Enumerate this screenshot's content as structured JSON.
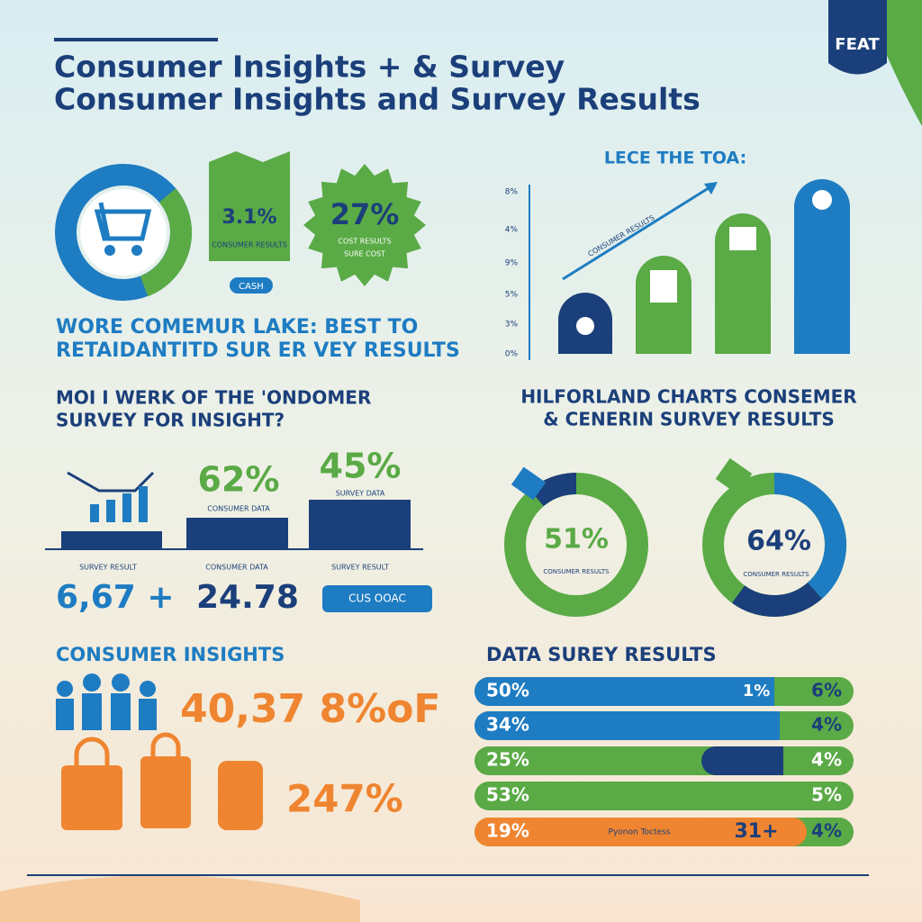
{
  "badge": "FEAT",
  "header": {
    "title_1": "Consumer Insights + & Survey",
    "title_2": "Consumer Insights and Survey Results"
  },
  "top_left": {
    "box_value": "3.1%",
    "box_caption": "CONSUMER RESULTS",
    "tag": "CASH",
    "burst_value": "27%",
    "burst_caption_1": "COST RESULTS",
    "burst_caption_2": "SURE COST",
    "headline_1": "WORE COMEMUR LAKE: BEST TO",
    "headline_2": "RETAIDANTITD SUR ER VEY RESULTS"
  },
  "top_right": {
    "heading": "LECE THE TOA:",
    "arrow_label": "CONSUMER RESULTS",
    "axis_labels": [
      "8%",
      "4%",
      "9%",
      "5%",
      "3%",
      "0%"
    ]
  },
  "middle_left": {
    "heading_1": "MOI I WERK OF THE 'ONDOMER",
    "heading_2": "SURVEY FOR INSIGHT?",
    "value_1": "62%",
    "caption_1": "CONSUMER DATA",
    "value_2": "45%",
    "caption_2": "SURVEY DATA",
    "notes": [
      "SURVEY RESULT",
      "CONSUMER DATA",
      "SURVEY RESULT"
    ],
    "stat_1": "6,67 +",
    "stat_2": "24.78",
    "tag": "CUS OOAC"
  },
  "middle_right": {
    "heading_1": "HILFORLAND CHARTS CONSEMER",
    "heading_2": "& CENERIN SURVEY RESULTS",
    "donut_1": "51%",
    "donut_1_caption": "CONSUMER RESULTS",
    "donut_2": "64%",
    "donut_2_caption": "CONSUMER RESULTS"
  },
  "bottom_left": {
    "heading": "CONSUMER INSIGHTS",
    "stat_1": "40,37 8%oF",
    "stat_2": "247%"
  },
  "bottom_right": {
    "heading": "DATA SUREY RESULTS",
    "rows": [
      {
        "left": "50%",
        "middle": "1%",
        "right": "6%"
      },
      {
        "left": "34%",
        "right": "4%"
      },
      {
        "left": "25%",
        "right": "4%"
      },
      {
        "left": "53%",
        "right": "5%"
      },
      {
        "left": "19%",
        "note": "Pyonon Toctess",
        "middle": "31+",
        "right": "4%"
      }
    ]
  }
}
